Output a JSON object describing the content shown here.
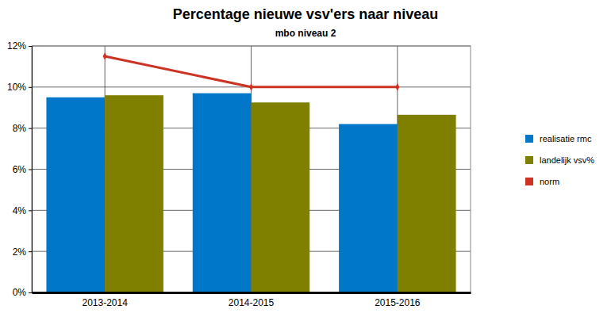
{
  "chart_data": {
    "type": "bar",
    "title": "Percentage nieuwe vsv'ers naar niveau",
    "subtitle": "mbo niveau 2",
    "categories": [
      "2013-2014",
      "2014-2015",
      "2015-2016"
    ],
    "series": [
      {
        "name": "realisatie rmc",
        "color": "#0077c8",
        "type": "bar",
        "values": [
          9.5,
          9.7,
          8.2
        ]
      },
      {
        "name": "landelijk vsv%",
        "color": "#7f7f00",
        "type": "bar",
        "values": [
          9.6,
          9.25,
          8.65
        ]
      },
      {
        "name": "norm",
        "color": "#cc3322",
        "type": "line",
        "marker": "diamond",
        "values": [
          11.5,
          10.0,
          10.0
        ]
      }
    ],
    "ylim": [
      0,
      12
    ],
    "yticks": [
      {
        "value": 0,
        "label": "0%"
      },
      {
        "value": 2,
        "label": "2%"
      },
      {
        "value": 4,
        "label": "4%"
      },
      {
        "value": 6,
        "label": "6%"
      },
      {
        "value": 8,
        "label": "8%"
      },
      {
        "value": 10,
        "label": "10%"
      },
      {
        "value": 12,
        "label": "12%"
      }
    ],
    "grid": true,
    "legend": "right"
  }
}
